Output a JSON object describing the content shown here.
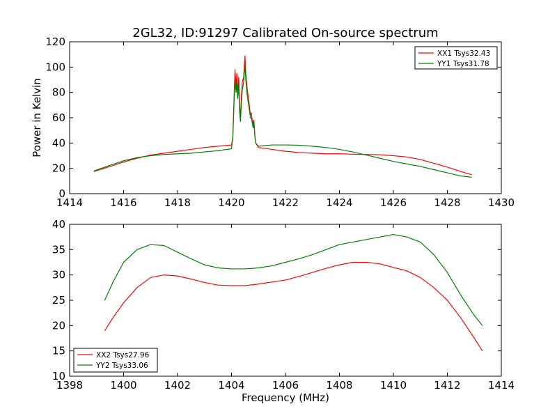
{
  "title": "2GL32, ID:91297 Calibrated On-source spectrum",
  "chart_data": [
    {
      "type": "line",
      "title": "",
      "xlabel": "",
      "ylabel": "Power in Kelvin",
      "xlim": [
        1414,
        1430
      ],
      "ylim": [
        0,
        120
      ],
      "xticks": [
        1414,
        1416,
        1418,
        1420,
        1422,
        1424,
        1426,
        1428,
        1430
      ],
      "yticks": [
        0,
        20,
        40,
        60,
        80,
        100,
        120
      ],
      "grid": false,
      "legend_position": "top-right",
      "series": [
        {
          "name": "XX1 Tsys32.43",
          "color": "#ff0000",
          "x": [
            1414.9,
            1415.5,
            1416.0,
            1416.5,
            1417.0,
            1417.5,
            1418.0,
            1418.5,
            1419.0,
            1419.5,
            1420.0,
            1420.05,
            1420.1,
            1420.13,
            1420.17,
            1420.2,
            1420.23,
            1420.27,
            1420.3,
            1420.33,
            1420.37,
            1420.4,
            1420.45,
            1420.5,
            1420.53,
            1420.57,
            1420.6,
            1420.65,
            1420.7,
            1420.73,
            1420.77,
            1420.8,
            1420.83,
            1420.87,
            1420.9,
            1421.0,
            1421.5,
            1422.0,
            1422.5,
            1423.0,
            1423.5,
            1424.0,
            1424.5,
            1425.0,
            1425.5,
            1426.0,
            1426.5,
            1427.0,
            1427.5,
            1428.0,
            1428.5,
            1428.9
          ],
          "y": [
            17.5,
            21.5,
            25.0,
            28.0,
            30.5,
            32.0,
            33.5,
            35.0,
            36.5,
            37.5,
            38.5,
            45.0,
            80.0,
            98.0,
            85.0,
            95.0,
            80.0,
            92.0,
            70.0,
            60.0,
            78.0,
            88.0,
            92.0,
            109.0,
            95.0,
            85.0,
            80.0,
            72.0,
            62.0,
            64.0,
            58.0,
            55.0,
            58.0,
            45.0,
            40.0,
            36.5,
            35.0,
            33.5,
            32.5,
            32.0,
            31.5,
            31.5,
            31.2,
            31.0,
            30.8,
            30.0,
            29.0,
            27.0,
            24.0,
            21.0,
            17.5,
            15.0
          ]
        },
        {
          "name": "YY1 Tsys31.78",
          "color": "#008000",
          "x": [
            1414.9,
            1415.5,
            1416.0,
            1416.5,
            1417.0,
            1417.5,
            1418.0,
            1418.5,
            1419.0,
            1419.5,
            1420.0,
            1420.05,
            1420.1,
            1420.13,
            1420.17,
            1420.2,
            1420.23,
            1420.27,
            1420.3,
            1420.33,
            1420.37,
            1420.4,
            1420.45,
            1420.5,
            1420.53,
            1420.57,
            1420.6,
            1420.65,
            1420.7,
            1420.73,
            1420.77,
            1420.8,
            1420.83,
            1420.87,
            1420.9,
            1421.0,
            1421.5,
            1422.0,
            1422.5,
            1423.0,
            1423.5,
            1424.0,
            1424.5,
            1425.0,
            1425.5,
            1426.0,
            1426.5,
            1427.0,
            1427.5,
            1428.0,
            1428.5,
            1428.9
          ],
          "y": [
            18.0,
            22.5,
            26.0,
            28.5,
            30.0,
            31.0,
            31.5,
            32.0,
            33.0,
            34.0,
            35.5,
            45.0,
            75.0,
            90.0,
            80.0,
            88.0,
            75.0,
            85.0,
            65.0,
            57.0,
            72.0,
            82.0,
            88.0,
            102.0,
            90.0,
            80.0,
            75.0,
            68.0,
            60.0,
            60.0,
            56.0,
            52.0,
            56.0,
            44.0,
            40.0,
            37.5,
            38.5,
            38.5,
            38.3,
            37.5,
            36.5,
            35.0,
            33.0,
            30.5,
            28.0,
            25.5,
            23.5,
            21.5,
            19.0,
            16.5,
            14.0,
            13.0
          ]
        }
      ]
    },
    {
      "type": "line",
      "title": "",
      "xlabel": "Frequency (MHz)",
      "ylabel": "",
      "xlim": [
        1398,
        1414
      ],
      "ylim": [
        10,
        40
      ],
      "xticks": [
        1398,
        1400,
        1402,
        1404,
        1406,
        1408,
        1410,
        1412,
        1414
      ],
      "yticks": [
        10,
        15,
        20,
        25,
        30,
        35,
        40
      ],
      "grid": false,
      "legend_position": "bottom-left",
      "series": [
        {
          "name": "XX2 Tsys27.96",
          "color": "#ff0000",
          "x": [
            1399.3,
            1399.6,
            1400.0,
            1400.5,
            1401.0,
            1401.5,
            1402.0,
            1402.5,
            1403.0,
            1403.5,
            1404.0,
            1404.5,
            1405.0,
            1405.5,
            1406.0,
            1406.5,
            1407.0,
            1407.5,
            1408.0,
            1408.5,
            1409.0,
            1409.5,
            1410.0,
            1410.5,
            1411.0,
            1411.5,
            1412.0,
            1412.5,
            1413.0,
            1413.3
          ],
          "y": [
            19.0,
            21.5,
            24.5,
            27.5,
            29.5,
            30.0,
            29.8,
            29.2,
            28.5,
            28.0,
            27.9,
            27.9,
            28.2,
            28.6,
            29.0,
            29.7,
            30.5,
            31.3,
            32.0,
            32.5,
            32.5,
            32.2,
            31.5,
            30.8,
            29.5,
            27.5,
            25.0,
            21.5,
            17.5,
            15.0
          ]
        },
        {
          "name": "YY2 Tsys33.06",
          "color": "#008000",
          "x": [
            1399.3,
            1399.6,
            1400.0,
            1400.5,
            1401.0,
            1401.5,
            1402.0,
            1402.5,
            1403.0,
            1403.5,
            1404.0,
            1404.5,
            1405.0,
            1405.5,
            1406.0,
            1406.5,
            1407.0,
            1407.5,
            1408.0,
            1408.5,
            1409.0,
            1409.5,
            1410.0,
            1410.5,
            1411.0,
            1411.5,
            1412.0,
            1412.5,
            1413.0,
            1413.3
          ],
          "y": [
            25.0,
            28.5,
            32.5,
            35.0,
            36.0,
            35.8,
            34.5,
            33.2,
            32.0,
            31.4,
            31.2,
            31.2,
            31.4,
            31.8,
            32.5,
            33.2,
            34.0,
            35.0,
            36.0,
            36.5,
            37.0,
            37.5,
            38.0,
            37.5,
            36.5,
            34.0,
            30.5,
            26.0,
            22.0,
            20.0
          ]
        }
      ]
    }
  ]
}
